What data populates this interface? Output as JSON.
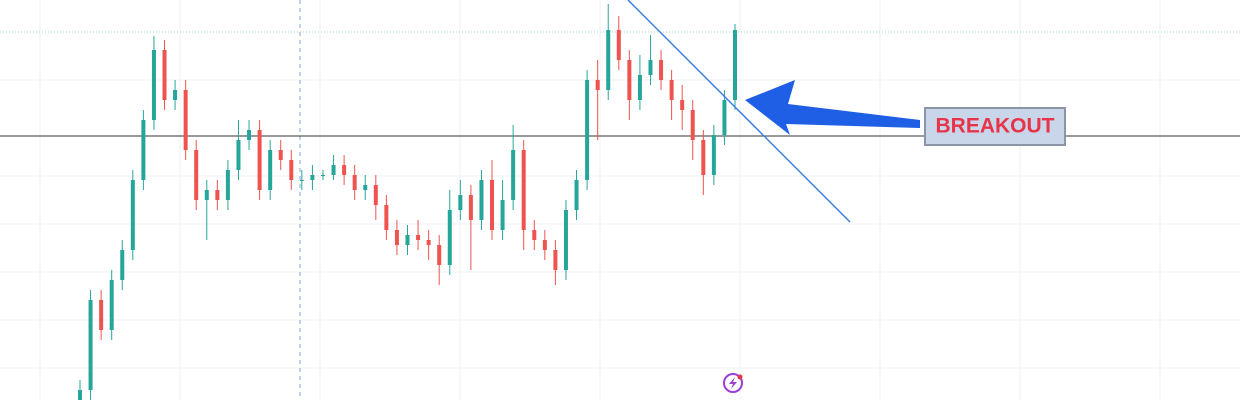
{
  "chart_data": {
    "type": "candlestick",
    "annotation": "BREAKOUT",
    "up_color": "#26a69a",
    "down_color": "#ef5350",
    "ylim": [
      0,
      100
    ],
    "open": [
      0,
      2.5,
      25,
      17.5,
      30,
      37.5,
      55,
      70,
      87.5,
      75,
      77.5,
      62.5,
      50,
      52.5,
      50,
      57.5,
      65,
      67.5,
      52.5,
      62.5,
      60,
      55,
      55,
      56.25,
      56.25,
      58.75,
      56.25,
      52.5,
      53.75,
      48.75,
      42.5,
      38.75,
      41.25,
      40,
      38.75,
      33.75,
      47.5,
      51.25,
      45,
      55,
      42.5,
      50,
      62.5,
      42.5,
      40,
      37.5,
      32.5,
      47.5,
      55,
      80,
      77.5,
      92.5,
      85,
      75,
      81.25,
      85,
      80,
      75,
      72.5,
      65,
      56.25,
      66.25,
      75
    ],
    "high": [
      5,
      27.5,
      27.5,
      32.5,
      40,
      57.5,
      72.5,
      91,
      90,
      80,
      80,
      65,
      55,
      55,
      60,
      70,
      70,
      70,
      65,
      65,
      62.5,
      57.5,
      58.75,
      57.5,
      61.25,
      61.25,
      58.75,
      56.25,
      56.25,
      51.25,
      45,
      43.75,
      45,
      42.5,
      41.25,
      52.5,
      55,
      53.75,
      57.5,
      60,
      55,
      68.75,
      65,
      45,
      42.5,
      40,
      50,
      57.5,
      82.5,
      85,
      99,
      96,
      87.5,
      86.25,
      91.25,
      87.5,
      82.5,
      78.75,
      75,
      67.5,
      68.75,
      77.5,
      94
    ],
    "low": [
      0,
      0,
      15,
      15,
      27.5,
      35,
      52.5,
      67.5,
      72.5,
      72.5,
      60,
      47.5,
      40,
      47.5,
      47.5,
      55,
      62.5,
      50,
      50,
      57.5,
      52.5,
      52.5,
      52.5,
      55,
      55,
      53.75,
      50,
      50,
      45,
      40,
      36.25,
      36.25,
      37.5,
      35,
      28.75,
      31.25,
      45,
      32.5,
      42.5,
      40,
      40,
      47.5,
      37.5,
      37.5,
      35,
      28.75,
      30,
      45,
      52.5,
      65,
      75,
      82.5,
      70,
      72.5,
      78.75,
      77.5,
      70,
      67.5,
      60,
      51.25,
      53.75,
      63.75,
      72.5
    ],
    "close": [
      2.5,
      25,
      17.5,
      30,
      37.5,
      55,
      70,
      87.5,
      75,
      77.5,
      62.5,
      50,
      52.5,
      50,
      57.5,
      65,
      67.5,
      52.5,
      62.5,
      60,
      55,
      55,
      56.25,
      56.25,
      58.75,
      56.25,
      52.5,
      53.75,
      48.75,
      42.5,
      38.75,
      41.25,
      40,
      38.75,
      33.75,
      47.5,
      51.25,
      45,
      55,
      42.5,
      50,
      62.5,
      42.5,
      40,
      37.5,
      32.5,
      47.5,
      55,
      80,
      77.5,
      92.5,
      85,
      75,
      81.25,
      85,
      80,
      75,
      72.5,
      65,
      56.25,
      66.25,
      75,
      92.5
    ]
  }
}
